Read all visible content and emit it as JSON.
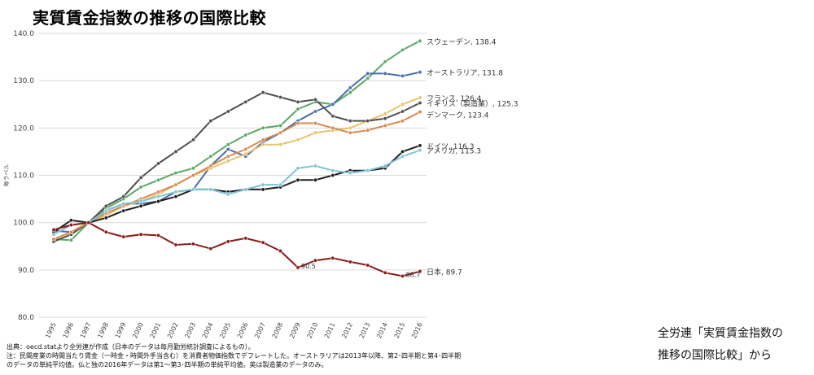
{
  "page": {
    "title": "実質賃金指数の推移の国際比較",
    "source_line1": "出典：oecd.statより全労連が作成（日本のデータは毎月勤労統計調査によるもの）。",
    "source_line2": "注：民間産業の時間当たり賃金（一時金・時間外手当含む）を消費者物価指数でデフレートした。オーストラリアは2013年以降、第2･四半期と第4･四半期",
    "source_line3": "のデータの単純平均値。仏と独の2016年データは第1～第3･四半期の単純平均値。英は製造業のデータのみ。",
    "caption_line1": "全労連「実質賃金指数の",
    "caption_line2": "推移の国際比較」から"
  },
  "chart_data": {
    "type": "line",
    "ylabel": "毎ラベル",
    "ylim": [
      80,
      140
    ],
    "yticks": [
      "140.0",
      "130.0",
      "120.0",
      "110.0",
      "100.0",
      "90.0",
      "80.0"
    ],
    "grid": true,
    "categories": [
      "1995",
      "1996",
      "1997",
      "1998",
      "1999",
      "2000",
      "2001",
      "2002",
      "2003",
      "2004",
      "2005",
      "2006",
      "2007",
      "2008",
      "2009",
      "2010",
      "2011",
      "2012",
      "2013",
      "2014",
      "2015",
      "2016"
    ],
    "series": [
      {
        "name": "スウェーデン",
        "end_label": "スウェーデン, 138.4",
        "color": "#5aaa62",
        "values": [
          96.5,
          96.3,
          100.0,
          103.0,
          105.0,
          107.5,
          109.0,
          110.5,
          111.5,
          114.0,
          116.5,
          118.5,
          120.0,
          120.5,
          124.0,
          125.5,
          125.0,
          127.5,
          130.5,
          134.0,
          136.5,
          138.4
        ]
      },
      {
        "name": "オーストラリア",
        "end_label": "オーストラリア, 131.8",
        "color": "#4a6ea8",
        "values": [
          98.3,
          98.0,
          100.0,
          102.5,
          104.0,
          104.0,
          104.5,
          106.5,
          107.0,
          112.0,
          115.5,
          114.0,
          117.0,
          119.0,
          121.5,
          123.5,
          125.0,
          128.5,
          131.5,
          131.5,
          131.0,
          131.8
        ]
      },
      {
        "name": "フランス",
        "end_label": "フランス, 126.4",
        "color": "#e6c36c",
        "values": [
          96.5,
          98.0,
          100.0,
          101.5,
          103.5,
          104.5,
          106.0,
          108.0,
          110.0,
          111.5,
          113.0,
          114.5,
          116.5,
          116.5,
          117.5,
          119.0,
          119.5,
          120.0,
          121.5,
          123.0,
          125.0,
          126.4
        ]
      },
      {
        "name": "イギリス（製造業）",
        "end_label": "イギリス（製造業）, 125.3",
        "color": "#4f4f4f",
        "values": [
          96.0,
          97.5,
          100.0,
          103.5,
          105.5,
          109.5,
          112.5,
          115.0,
          117.5,
          121.5,
          123.5,
          125.5,
          127.5,
          126.5,
          125.5,
          126.0,
          122.5,
          121.5,
          121.5,
          122.0,
          123.5,
          125.3
        ]
      },
      {
        "name": "デンマーク",
        "end_label": "デンマーク, 123.4",
        "color": "#d98a4e",
        "values": [
          96.5,
          98.0,
          100.0,
          102.0,
          103.5,
          105.0,
          106.5,
          108.0,
          110.0,
          112.0,
          114.0,
          115.5,
          117.5,
          119.0,
          121.0,
          121.0,
          120.0,
          119.0,
          119.5,
          120.5,
          121.5,
          123.4
        ]
      },
      {
        "name": "ドイツ",
        "end_label": "ドイツ, 116.3",
        "color": "#1f1f1f",
        "values": [
          98.0,
          100.5,
          100.0,
          101.0,
          102.5,
          103.5,
          104.5,
          105.5,
          107.0,
          107.0,
          106.5,
          107.0,
          107.0,
          107.5,
          109.0,
          109.0,
          110.0,
          111.0,
          111.0,
          111.5,
          115.0,
          116.3
        ]
      },
      {
        "name": "アメリカ",
        "end_label": "アメリカ, 115.3",
        "color": "#7ec3d8",
        "values": [
          97.5,
          99.5,
          100.0,
          102.5,
          104.0,
          104.5,
          105.5,
          106.5,
          107.0,
          107.0,
          106.0,
          107.0,
          108.0,
          108.0,
          111.5,
          112.0,
          111.0,
          110.5,
          111.0,
          112.0,
          114.0,
          115.3
        ]
      },
      {
        "name": "日本",
        "end_label": "日本, 89.7",
        "color": "#8b1a1a",
        "values": [
          98.5,
          99.5,
          100.0,
          98.0,
          97.0,
          97.5,
          97.3,
          95.3,
          95.5,
          94.5,
          96.0,
          96.7,
          95.8,
          94.0,
          90.5,
          92.0,
          92.5,
          91.7,
          91.0,
          89.4,
          88.7,
          89.7
        ],
        "annotations": [
          {
            "category": "2009",
            "text": "90.5"
          },
          {
            "category": "2015",
            "text": "88.7"
          }
        ]
      }
    ]
  }
}
